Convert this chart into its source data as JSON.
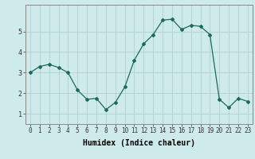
{
  "x": [
    0,
    1,
    2,
    3,
    4,
    5,
    6,
    7,
    8,
    9,
    10,
    11,
    12,
    13,
    14,
    15,
    16,
    17,
    18,
    19,
    20,
    21,
    22,
    23
  ],
  "y": [
    3.0,
    3.3,
    3.4,
    3.25,
    3.0,
    2.15,
    1.7,
    1.75,
    1.2,
    1.55,
    2.3,
    3.6,
    4.4,
    4.85,
    5.55,
    5.6,
    5.1,
    5.3,
    5.25,
    4.85,
    1.7,
    1.3,
    1.75,
    1.6
  ],
  "line_color": "#1a6b5a",
  "marker": "D",
  "marker_size": 2.0,
  "bg_color": "#ceeaea",
  "grid_color": "#b0d0d0",
  "xlabel": "Humidex (Indice chaleur)",
  "xlim": [
    -0.5,
    23.5
  ],
  "ylim": [
    0.5,
    6.3
  ],
  "yticks": [
    1,
    2,
    3,
    4,
    5
  ],
  "xticks": [
    0,
    1,
    2,
    3,
    4,
    5,
    6,
    7,
    8,
    9,
    10,
    11,
    12,
    13,
    14,
    15,
    16,
    17,
    18,
    19,
    20,
    21,
    22,
    23
  ],
  "tick_fontsize": 5.5,
  "xlabel_fontsize": 7.0
}
